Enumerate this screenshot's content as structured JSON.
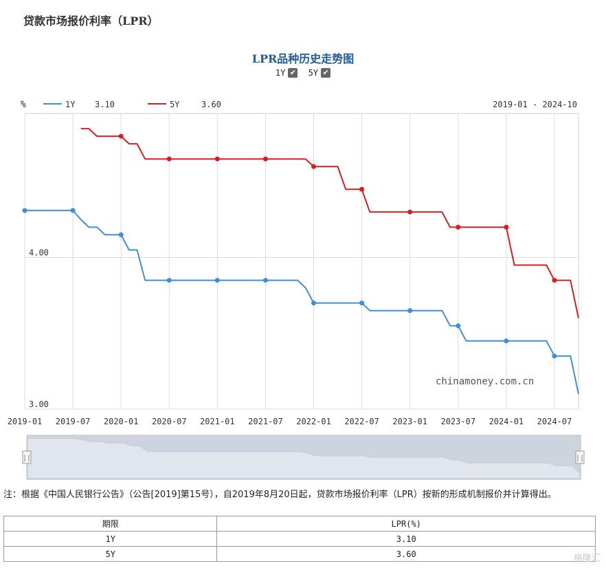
{
  "page": {
    "title": "贷款市场报价利率（LPR）",
    "watermark": "格隆汇",
    "footnote": "注：根据《中国人民银行公告》（公告[2019]第15号），自2019年8月20日起，贷款市场报价利率（LPR）按新的形成机制报价并计算得出。"
  },
  "chart": {
    "title": "LPR品种历史走势图",
    "toggles": [
      {
        "label": "1Y",
        "checked": true
      },
      {
        "label": "5Y",
        "checked": true
      }
    ],
    "unit_label": "%",
    "legend": [
      {
        "label": "1Y",
        "value": "3.10",
        "color": "#3d8fd9"
      },
      {
        "label": "5Y",
        "value": "3.60",
        "color": "#d71e1e"
      }
    ],
    "range_text": "2019-01 - 2024-10",
    "source_text": "chinamoney.com.cn",
    "navigator_handle": "||"
  },
  "chart_data": {
    "type": "line",
    "x_type": "month",
    "xlim": [
      "2019-01",
      "2024-10"
    ],
    "ylim": [
      3.0,
      4.95
    ],
    "y_ticks": [
      3.0,
      4.0
    ],
    "y_tick_labels": [
      "3.00",
      "4.00"
    ],
    "x_ticks": [
      "2019-01",
      "2019-07",
      "2020-01",
      "2020-07",
      "2021-01",
      "2021-07",
      "2022-01",
      "2022-07",
      "2023-01",
      "2023-07",
      "2024-01",
      "2024-07"
    ],
    "grid": true,
    "series": [
      {
        "name": "1Y",
        "color": "#3d8fd9",
        "points": [
          [
            "2019-01",
            4.31
          ],
          [
            "2019-02",
            4.31
          ],
          [
            "2019-03",
            4.31
          ],
          [
            "2019-04",
            4.31
          ],
          [
            "2019-05",
            4.31
          ],
          [
            "2019-06",
            4.31
          ],
          [
            "2019-07",
            4.31
          ],
          [
            "2019-08",
            4.25
          ],
          [
            "2019-09",
            4.2
          ],
          [
            "2019-10",
            4.2
          ],
          [
            "2019-11",
            4.15
          ],
          [
            "2019-12",
            4.15
          ],
          [
            "2020-01",
            4.15
          ],
          [
            "2020-02",
            4.05
          ],
          [
            "2020-03",
            4.05
          ],
          [
            "2020-04",
            3.85
          ],
          [
            "2020-05",
            3.85
          ],
          [
            "2020-06",
            3.85
          ],
          [
            "2020-07",
            3.85
          ],
          [
            "2020-08",
            3.85
          ],
          [
            "2020-09",
            3.85
          ],
          [
            "2020-10",
            3.85
          ],
          [
            "2020-11",
            3.85
          ],
          [
            "2020-12",
            3.85
          ],
          [
            "2021-01",
            3.85
          ],
          [
            "2021-02",
            3.85
          ],
          [
            "2021-03",
            3.85
          ],
          [
            "2021-04",
            3.85
          ],
          [
            "2021-05",
            3.85
          ],
          [
            "2021-06",
            3.85
          ],
          [
            "2021-07",
            3.85
          ],
          [
            "2021-08",
            3.85
          ],
          [
            "2021-09",
            3.85
          ],
          [
            "2021-10",
            3.85
          ],
          [
            "2021-11",
            3.85
          ],
          [
            "2021-12",
            3.8
          ],
          [
            "2022-01",
            3.7
          ],
          [
            "2022-02",
            3.7
          ],
          [
            "2022-03",
            3.7
          ],
          [
            "2022-04",
            3.7
          ],
          [
            "2022-05",
            3.7
          ],
          [
            "2022-06",
            3.7
          ],
          [
            "2022-07",
            3.7
          ],
          [
            "2022-08",
            3.65
          ],
          [
            "2022-09",
            3.65
          ],
          [
            "2022-10",
            3.65
          ],
          [
            "2022-11",
            3.65
          ],
          [
            "2022-12",
            3.65
          ],
          [
            "2023-01",
            3.65
          ],
          [
            "2023-02",
            3.65
          ],
          [
            "2023-03",
            3.65
          ],
          [
            "2023-04",
            3.65
          ],
          [
            "2023-05",
            3.65
          ],
          [
            "2023-06",
            3.55
          ],
          [
            "2023-07",
            3.55
          ],
          [
            "2023-08",
            3.45
          ],
          [
            "2023-09",
            3.45
          ],
          [
            "2023-10",
            3.45
          ],
          [
            "2023-11",
            3.45
          ],
          [
            "2023-12",
            3.45
          ],
          [
            "2024-01",
            3.45
          ],
          [
            "2024-02",
            3.45
          ],
          [
            "2024-03",
            3.45
          ],
          [
            "2024-04",
            3.45
          ],
          [
            "2024-05",
            3.45
          ],
          [
            "2024-06",
            3.45
          ],
          [
            "2024-07",
            3.35
          ],
          [
            "2024-08",
            3.35
          ],
          [
            "2024-09",
            3.35
          ],
          [
            "2024-10",
            3.1
          ]
        ]
      },
      {
        "name": "5Y",
        "color": "#d71e1e",
        "points": [
          [
            "2019-08",
            4.85
          ],
          [
            "2019-09",
            4.85
          ],
          [
            "2019-10",
            4.8
          ],
          [
            "2019-11",
            4.8
          ],
          [
            "2019-12",
            4.8
          ],
          [
            "2020-01",
            4.8
          ],
          [
            "2020-02",
            4.75
          ],
          [
            "2020-03",
            4.75
          ],
          [
            "2020-04",
            4.65
          ],
          [
            "2020-05",
            4.65
          ],
          [
            "2020-06",
            4.65
          ],
          [
            "2020-07",
            4.65
          ],
          [
            "2020-08",
            4.65
          ],
          [
            "2020-09",
            4.65
          ],
          [
            "2020-10",
            4.65
          ],
          [
            "2020-11",
            4.65
          ],
          [
            "2020-12",
            4.65
          ],
          [
            "2021-01",
            4.65
          ],
          [
            "2021-02",
            4.65
          ],
          [
            "2021-03",
            4.65
          ],
          [
            "2021-04",
            4.65
          ],
          [
            "2021-05",
            4.65
          ],
          [
            "2021-06",
            4.65
          ],
          [
            "2021-07",
            4.65
          ],
          [
            "2021-08",
            4.65
          ],
          [
            "2021-09",
            4.65
          ],
          [
            "2021-10",
            4.65
          ],
          [
            "2021-11",
            4.65
          ],
          [
            "2021-12",
            4.65
          ],
          [
            "2022-01",
            4.6
          ],
          [
            "2022-02",
            4.6
          ],
          [
            "2022-03",
            4.6
          ],
          [
            "2022-04",
            4.6
          ],
          [
            "2022-05",
            4.45
          ],
          [
            "2022-06",
            4.45
          ],
          [
            "2022-07",
            4.45
          ],
          [
            "2022-08",
            4.3
          ],
          [
            "2022-09",
            4.3
          ],
          [
            "2022-10",
            4.3
          ],
          [
            "2022-11",
            4.3
          ],
          [
            "2022-12",
            4.3
          ],
          [
            "2023-01",
            4.3
          ],
          [
            "2023-02",
            4.3
          ],
          [
            "2023-03",
            4.3
          ],
          [
            "2023-04",
            4.3
          ],
          [
            "2023-05",
            4.3
          ],
          [
            "2023-06",
            4.2
          ],
          [
            "2023-07",
            4.2
          ],
          [
            "2023-08",
            4.2
          ],
          [
            "2023-09",
            4.2
          ],
          [
            "2023-10",
            4.2
          ],
          [
            "2023-11",
            4.2
          ],
          [
            "2023-12",
            4.2
          ],
          [
            "2024-01",
            4.2
          ],
          [
            "2024-02",
            3.95
          ],
          [
            "2024-03",
            3.95
          ],
          [
            "2024-04",
            3.95
          ],
          [
            "2024-05",
            3.95
          ],
          [
            "2024-06",
            3.95
          ],
          [
            "2024-07",
            3.85
          ],
          [
            "2024-08",
            3.85
          ],
          [
            "2024-09",
            3.85
          ],
          [
            "2024-10",
            3.6
          ]
        ]
      }
    ]
  },
  "table": {
    "headers": [
      "期限",
      "LPR(%)"
    ],
    "rows": [
      [
        "1Y",
        "3.10"
      ],
      [
        "5Y",
        "3.60"
      ]
    ]
  }
}
